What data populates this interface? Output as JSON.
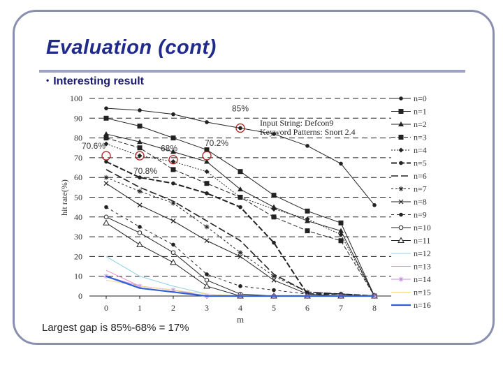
{
  "slide": {
    "title": "Evaluation (cont)",
    "bullet": "Interesting result",
    "gap_note": "Largest gap is 85%-68% = 17%"
  },
  "chart_data": {
    "type": "line",
    "ylabel": "hit rate(%)",
    "xlabel": "m",
    "xlim": [
      0,
      8
    ],
    "ylim": [
      0,
      100
    ],
    "yticks": [
      0,
      10,
      20,
      30,
      40,
      50,
      60,
      70,
      80,
      90,
      100
    ],
    "xticks": [
      0,
      1,
      2,
      3,
      4,
      5,
      6,
      7,
      8
    ],
    "grid": "horizontal dashed",
    "legend_position": "right",
    "inset_text": [
      "Input String: Defcon9",
      "Keyword Patterns: Snort 2.4"
    ],
    "x": [
      0,
      1,
      2,
      3,
      4,
      5,
      6,
      7,
      8
    ],
    "series": [
      {
        "name": "n=0",
        "values": [
          95,
          94,
          92,
          88,
          85,
          82,
          76,
          67,
          46
        ]
      },
      {
        "name": "n=1",
        "values": [
          90,
          86,
          80,
          74,
          63,
          51,
          43,
          37,
          0
        ]
      },
      {
        "name": "n=2",
        "values": [
          82,
          78,
          73,
          68,
          54,
          45,
          38,
          33,
          0
        ]
      },
      {
        "name": "n=3",
        "values": [
          80,
          75,
          64,
          57,
          50,
          40,
          33,
          28,
          0
        ]
      },
      {
        "name": "n=4",
        "values": [
          77,
          71,
          68,
          63,
          50,
          44,
          39,
          31,
          0
        ]
      },
      {
        "name": "n=5",
        "values": [
          68,
          60,
          57,
          52,
          45,
          27,
          1,
          1,
          0
        ]
      },
      {
        "name": "n=6",
        "values": [
          64,
          55,
          48,
          38,
          28,
          11,
          2,
          1,
          0
        ]
      },
      {
        "name": "n=7",
        "values": [
          60,
          53,
          47,
          35,
          22,
          10,
          2,
          1,
          0
        ]
      },
      {
        "name": "n=8",
        "values": [
          57,
          46,
          38,
          28,
          20,
          8,
          1,
          0,
          0
        ]
      },
      {
        "name": "n=9",
        "values": [
          45,
          35,
          26,
          11,
          5,
          3,
          1,
          0,
          0
        ]
      },
      {
        "name": "n=10",
        "values": [
          40,
          32,
          22,
          8,
          1,
          0,
          0,
          0,
          0
        ]
      },
      {
        "name": "n=11",
        "values": [
          37,
          26,
          17,
          5,
          0,
          0,
          0,
          0,
          0
        ]
      },
      {
        "name": "n=12",
        "values": [
          20,
          10,
          5,
          1,
          0,
          0,
          0,
          0,
          0
        ]
      },
      {
        "name": "n=13",
        "values": [
          13,
          5,
          3,
          0,
          0,
          0,
          0,
          0,
          0
        ]
      },
      {
        "name": "n=14",
        "values": [
          10,
          5,
          3,
          0,
          0,
          0,
          0,
          0,
          0
        ]
      },
      {
        "name": "n=15",
        "values": [
          8,
          5,
          3,
          1,
          0,
          0,
          0,
          0,
          0
        ]
      },
      {
        "name": "n=16",
        "values": [
          10,
          4,
          2,
          0,
          0,
          0,
          0,
          0,
          0
        ]
      }
    ],
    "annotations": [
      {
        "text": "85%",
        "x": 4,
        "y": 85
      },
      {
        "text": "70.2%",
        "x": 3,
        "y": 71
      },
      {
        "text": "70.6%",
        "x": 0,
        "y": 71
      },
      {
        "text": "68%",
        "x": 2,
        "y": 69
      },
      {
        "text": "70.8%",
        "x": 1,
        "y": 71
      }
    ],
    "colors": {
      "n=12": "#8ecfea",
      "n=13": "#ea8ec0",
      "n=14": "#c08ee0",
      "n=15": "#f2d98a",
      "n=16": "#3060d8",
      "default": "#222222",
      "highlight": "#b02020"
    }
  }
}
